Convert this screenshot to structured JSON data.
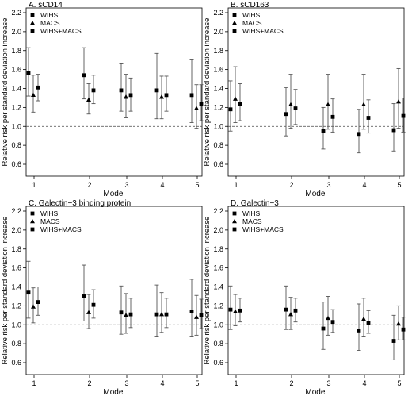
{
  "chart_data": [
    {
      "type": "errorbar",
      "title": "A. sCD14",
      "xlabel": "Model",
      "ylabel": "Relative risk per standard deviation increase",
      "categories": [
        "1",
        "2",
        "3",
        "4",
        "5"
      ],
      "ylim": [
        0.5,
        2.25
      ],
      "yticks": [
        "0.6",
        "0.8",
        "1.0",
        "1.2",
        "1.4",
        "1.6",
        "1.8",
        "2.0",
        "2.2"
      ],
      "reference_line": 1.0,
      "legend_position": "top-left",
      "series": [
        {
          "name": "WIHS",
          "marker": "square",
          "values": [
            1.56,
            1.54,
            1.38,
            1.38,
            1.33
          ],
          "lower": [
            1.32,
            1.29,
            1.16,
            1.08,
            1.04
          ],
          "upper": [
            1.83,
            1.83,
            1.66,
            1.77,
            1.71
          ]
        },
        {
          "name": "MACS",
          "marker": "triangle",
          "values": [
            1.33,
            1.28,
            1.31,
            1.31,
            1.19
          ],
          "lower": [
            1.15,
            1.13,
            1.09,
            1.08,
            0.98
          ],
          "upper": [
            1.54,
            1.45,
            1.55,
            1.53,
            1.44
          ]
        },
        {
          "name": "WIHS+MACS",
          "marker": "square",
          "values": [
            1.41,
            1.38,
            1.33,
            1.33,
            1.24
          ],
          "lower": [
            1.27,
            1.24,
            1.16,
            1.16,
            1.06
          ],
          "upper": [
            1.55,
            1.54,
            1.51,
            1.53,
            1.44
          ]
        }
      ]
    },
    {
      "type": "errorbar",
      "title": "B. sCD163",
      "xlabel": "Model",
      "ylabel": "Relative risk per standard deviation increase",
      "categories": [
        "1",
        "2",
        "3",
        "4",
        "5"
      ],
      "ylim": [
        0.5,
        2.25
      ],
      "yticks": [
        "0.6",
        "0.8",
        "1.0",
        "1.2",
        "1.4",
        "1.6",
        "1.8",
        "2.0",
        "2.2"
      ],
      "reference_line": 1.0,
      "legend_position": "top-left",
      "series": [
        {
          "name": "WIHS",
          "marker": "square",
          "values": [
            1.18,
            1.13,
            0.95,
            0.92,
            0.96
          ],
          "lower": [
            0.95,
            0.9,
            0.76,
            0.72,
            0.74
          ],
          "upper": [
            1.48,
            1.41,
            1.2,
            1.18,
            1.24
          ]
        },
        {
          "name": "MACS",
          "marker": "triangle",
          "values": [
            1.29,
            1.23,
            1.23,
            1.23,
            1.26
          ],
          "lower": [
            1.04,
            0.98,
            0.97,
            0.97,
            0.98
          ],
          "upper": [
            1.63,
            1.55,
            1.55,
            1.55,
            1.61
          ]
        },
        {
          "name": "WIHS+MACS",
          "marker": "square",
          "values": [
            1.24,
            1.19,
            1.1,
            1.09,
            1.11
          ],
          "lower": [
            1.06,
            1.02,
            0.94,
            0.93,
            0.94
          ],
          "upper": [
            1.45,
            1.39,
            1.29,
            1.28,
            1.3
          ]
        }
      ]
    },
    {
      "type": "errorbar",
      "title": "C. Galectin−3 binding protein",
      "xlabel": "Model",
      "ylabel": "Relative risk per standard deviation increase",
      "categories": [
        "1",
        "2",
        "3",
        "4",
        "5"
      ],
      "ylim": [
        0.5,
        2.25
      ],
      "yticks": [
        "0.6",
        "0.8",
        "1.0",
        "1.2",
        "1.4",
        "1.6",
        "1.8",
        "2.0",
        "2.2"
      ],
      "reference_line": 1.0,
      "legend_position": "top-left",
      "series": [
        {
          "name": "WIHS",
          "marker": "square",
          "values": [
            1.34,
            1.3,
            1.13,
            1.11,
            1.14
          ],
          "lower": [
            1.07,
            1.04,
            0.9,
            0.88,
            0.88
          ],
          "upper": [
            1.67,
            1.63,
            1.41,
            1.42,
            1.48
          ]
        },
        {
          "name": "MACS",
          "marker": "triangle",
          "values": [
            1.19,
            1.13,
            1.1,
            1.11,
            1.08
          ],
          "lower": [
            1.02,
            0.96,
            0.91,
            0.92,
            0.89
          ],
          "upper": [
            1.39,
            1.32,
            1.33,
            1.34,
            1.31
          ]
        },
        {
          "name": "WIHS+MACS",
          "marker": "square",
          "values": [
            1.24,
            1.21,
            1.11,
            1.11,
            1.1
          ],
          "lower": [
            1.1,
            1.07,
            0.97,
            0.97,
            0.96
          ],
          "upper": [
            1.4,
            1.37,
            1.28,
            1.28,
            1.27
          ]
        }
      ]
    },
    {
      "type": "errorbar",
      "title": "D. Galectin−3",
      "xlabel": "Model",
      "ylabel": "Relative risk per standard deviation increase",
      "categories": [
        "1",
        "2",
        "3",
        "4",
        "5"
      ],
      "ylim": [
        0.5,
        2.25
      ],
      "yticks": [
        "0.6",
        "0.8",
        "1.0",
        "1.2",
        "1.4",
        "1.6",
        "1.8",
        "2.0",
        "2.2"
      ],
      "reference_line": 1.0,
      "legend_position": "top-left",
      "series": [
        {
          "name": "WIHS",
          "marker": "square",
          "values": [
            1.16,
            1.16,
            0.96,
            0.94,
            0.83
          ],
          "lower": [
            0.95,
            0.95,
            0.74,
            0.73,
            0.63
          ],
          "upper": [
            1.41,
            1.41,
            1.24,
            1.22,
            1.1
          ]
        },
        {
          "name": "MACS",
          "marker": "triangle",
          "values": [
            1.14,
            1.11,
            1.07,
            1.06,
            1.01
          ],
          "lower": [
            0.99,
            0.95,
            0.89,
            0.88,
            0.84
          ],
          "upper": [
            1.32,
            1.29,
            1.3,
            1.28,
            1.2
          ]
        },
        {
          "name": "WIHS+MACS",
          "marker": "square",
          "values": [
            1.15,
            1.15,
            1.03,
            1.02,
            0.95
          ],
          "lower": [
            1.03,
            1.03,
            0.92,
            0.91,
            0.84
          ],
          "upper": [
            1.28,
            1.28,
            1.16,
            1.15,
            1.08
          ]
        }
      ]
    }
  ]
}
